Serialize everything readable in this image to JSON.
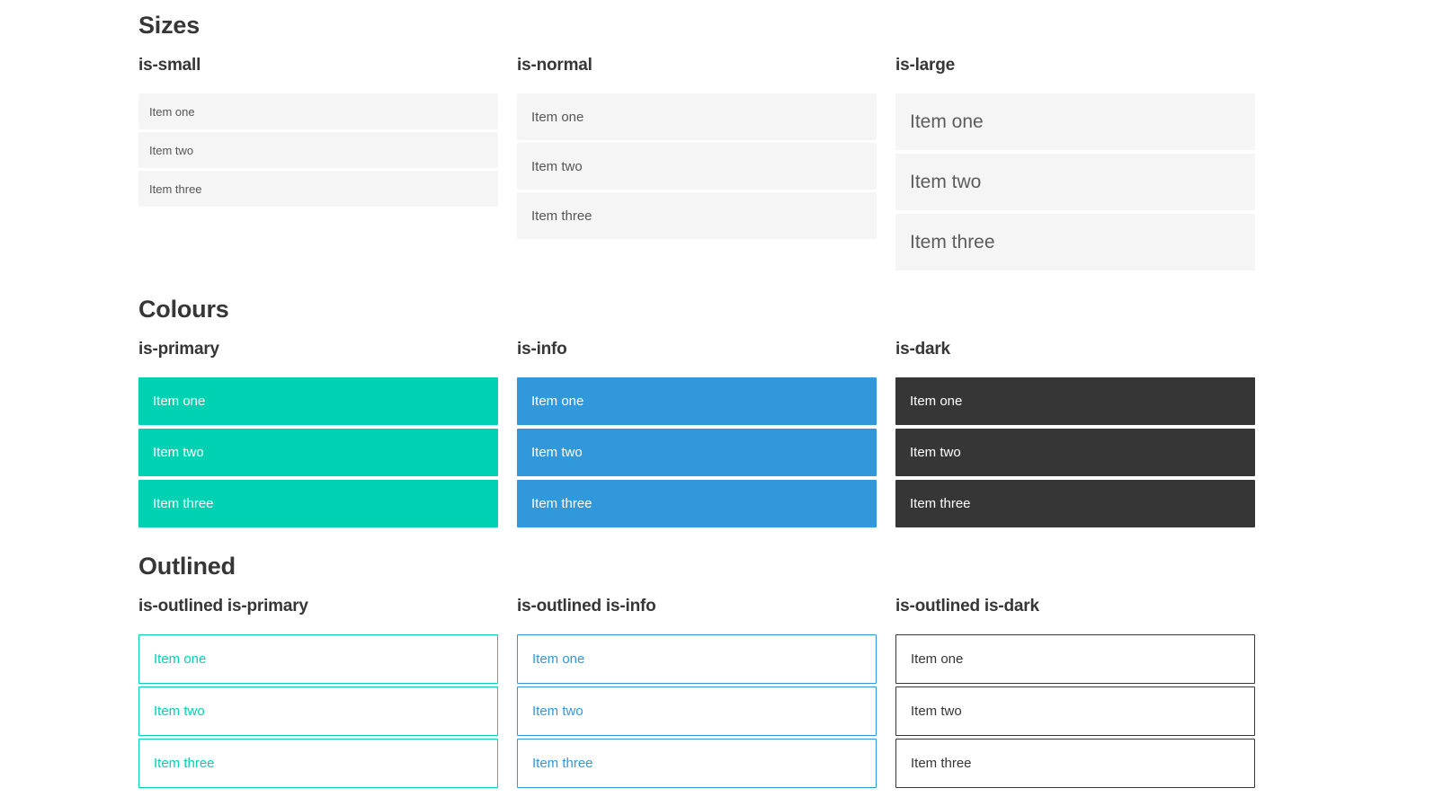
{
  "colors": {
    "primary": "#00d1b2",
    "info": "#3298dc",
    "dark": "#363636",
    "light_item_bg": "#f5f5f5",
    "heading_text": "#363636",
    "item_text": "#565656",
    "page_background": "#ffffff"
  },
  "sections": [
    {
      "title": "Sizes",
      "columns": [
        {
          "label": "is-small",
          "items": [
            "Item one",
            "Item two",
            "Item three"
          ]
        },
        {
          "label": "is-normal",
          "items": [
            "Item one",
            "Item two",
            "Item three"
          ]
        },
        {
          "label": "is-large",
          "items": [
            "Item one",
            "Item two",
            "Item three"
          ]
        }
      ]
    },
    {
      "title": "Colours",
      "columns": [
        {
          "label": "is-primary",
          "items": [
            "Item one",
            "Item two",
            "Item three"
          ]
        },
        {
          "label": "is-info",
          "items": [
            "Item one",
            "Item two",
            "Item three"
          ]
        },
        {
          "label": "is-dark",
          "items": [
            "Item one",
            "Item two",
            "Item three"
          ]
        }
      ]
    },
    {
      "title": "Outlined",
      "columns": [
        {
          "label": "is-outlined is-primary",
          "items": [
            "Item one",
            "Item two",
            "Item three"
          ]
        },
        {
          "label": "is-outlined is-info",
          "items": [
            "Item one",
            "Item two",
            "Item three"
          ]
        },
        {
          "label": "is-outlined is-dark",
          "items": [
            "Item one",
            "Item two",
            "Item three"
          ]
        }
      ]
    }
  ]
}
